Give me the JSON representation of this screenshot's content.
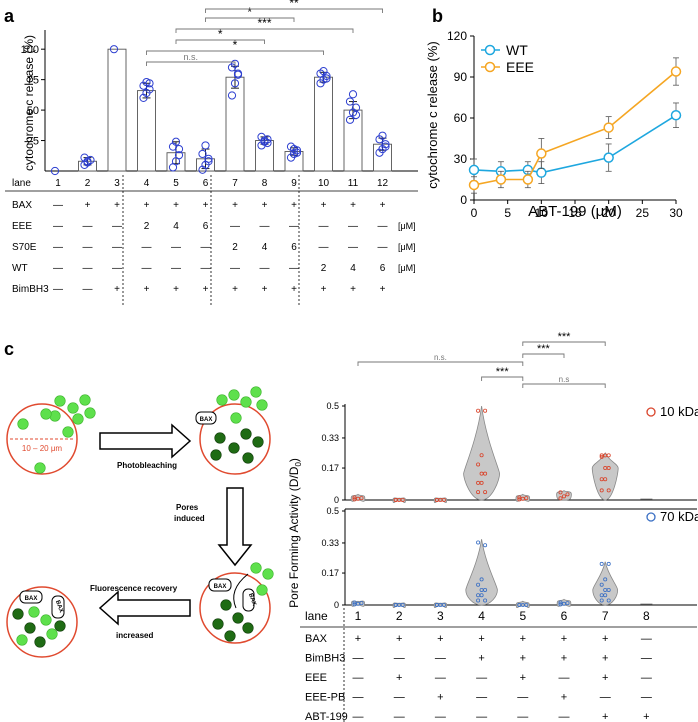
{
  "panels": {
    "a": "a",
    "b": "b",
    "c": "c"
  },
  "panel_a": {
    "ylabel": "cytochrome c release (%)",
    "ticks": [
      25,
      50,
      75,
      100
    ],
    "lane_label": "lane",
    "lanes": [
      "1",
      "2",
      "3",
      "4",
      "5",
      "6",
      "7",
      "8",
      "9",
      "10",
      "11",
      "12"
    ],
    "bars": [
      0,
      8,
      100,
      66,
      15,
      10,
      77,
      25,
      16,
      77,
      50,
      22
    ],
    "errors": [
      0,
      3,
      0,
      6,
      9,
      8,
      9,
      3,
      3,
      4,
      7,
      5
    ],
    "points": [
      [
        0
      ],
      [
        5,
        7,
        9,
        11,
        8
      ],
      [
        100
      ],
      [
        60,
        64,
        67,
        70,
        73,
        72
      ],
      [
        3,
        8,
        13,
        20,
        24,
        18
      ],
      [
        1,
        5,
        10,
        14,
        21,
        8
      ],
      [
        62,
        72,
        79,
        85,
        88,
        80
      ],
      [
        21,
        24,
        26,
        28,
        25,
        23
      ],
      [
        11,
        14,
        17,
        20,
        18,
        15
      ],
      [
        72,
        75,
        78,
        80,
        82,
        76
      ],
      [
        42,
        48,
        52,
        57,
        63,
        46
      ],
      [
        15,
        18,
        22,
        26,
        29,
        20
      ]
    ],
    "significance": [
      {
        "from": 4,
        "to": 7,
        "label": "n.s."
      },
      {
        "from": 4,
        "to": 10,
        "label": "*"
      },
      {
        "from": 5,
        "to": 8,
        "label": "*"
      },
      {
        "from": 5,
        "to": 11,
        "label": "***"
      },
      {
        "from": 6,
        "to": 9,
        "label": "*"
      },
      {
        "from": 6,
        "to": 12,
        "label": "**"
      }
    ],
    "table": [
      {
        "label": "BAX",
        "values": [
          "—",
          "+",
          "+",
          "+",
          "+",
          "+",
          "+",
          "+",
          "+",
          "+",
          "+",
          "+"
        ],
        "unit": ""
      },
      {
        "label": "EEE",
        "values": [
          "—",
          "—",
          "—",
          "2",
          "4",
          "6",
          "—",
          "—",
          "—",
          "—",
          "—",
          "—"
        ],
        "unit": "[μM]"
      },
      {
        "label": "S70E",
        "values": [
          "—",
          "—",
          "—",
          "—",
          "—",
          "—",
          "2",
          "4",
          "6",
          "—",
          "—",
          "—"
        ],
        "unit": "[μM]"
      },
      {
        "label": "WT",
        "values": [
          "—",
          "—",
          "—",
          "—",
          "—",
          "—",
          "—",
          "—",
          "—",
          "2",
          "4",
          "6"
        ],
        "unit": "[μM]"
      },
      {
        "label": "BimBH3",
        "values": [
          "—",
          "—",
          "+",
          "+",
          "+",
          "+",
          "+",
          "+",
          "+",
          "+",
          "+",
          "+"
        ],
        "unit": ""
      }
    ]
  },
  "chart_data": {
    "type": "line",
    "title": "",
    "xlabel": "ABT-199 (μM)",
    "ylabel": "cytochrome c release (%)",
    "xlim": [
      0,
      30
    ],
    "ylim": [
      0,
      120
    ],
    "xticks": [
      0,
      5,
      10,
      15,
      20,
      25,
      30
    ],
    "yticks": [
      0,
      30,
      60,
      90,
      120
    ],
    "legend_position": "top-left",
    "series": [
      {
        "name": "WT",
        "color": "#1ea7df",
        "x": [
          0,
          4,
          8,
          10,
          20,
          30
        ],
        "y": [
          22,
          21,
          22,
          20,
          31,
          62
        ],
        "err": [
          8,
          7,
          6,
          8,
          10,
          9
        ]
      },
      {
        "name": "EEE",
        "color": "#f5a623",
        "x": [
          0,
          4,
          8,
          10,
          20,
          30
        ],
        "y": [
          11,
          15,
          15,
          34,
          53,
          94
        ],
        "err": [
          6,
          6,
          6,
          11,
          8,
          10
        ]
      }
    ]
  },
  "panel_c": {
    "schematic": {
      "scale": "10 – 20 μm",
      "step1": "Photobleaching",
      "step2_line1": "Pores",
      "step2_line2": "induced",
      "step3_line1": "Fluorescence recovery",
      "step3_line2": "increased",
      "bax": "BAX"
    },
    "ylabel": "Pore  Forming Activity (D/D",
    "ylabel_sub": "0",
    "ylabel_end": ")",
    "yticks": [
      "0",
      "0.17",
      "0.33",
      "0.5"
    ],
    "legend_top": "10 kDa",
    "legend_bottom": "70 kDa",
    "lane_label": "lane",
    "lanes": [
      "1",
      "2",
      "3",
      "4",
      "5",
      "6",
      "7",
      "8"
    ],
    "violin_10kda": [
      {
        "median": 0.01,
        "spread": 0.03
      },
      {
        "median": 0.0,
        "spread": 0.01
      },
      {
        "median": 0.0,
        "spread": 0.01
      },
      {
        "median": 0.14,
        "spread": 0.5
      },
      {
        "median": 0.01,
        "spread": 0.03
      },
      {
        "median": 0.03,
        "spread": 0.05
      },
      {
        "median": 0.17,
        "spread": 0.25
      },
      {
        "median": 0.0,
        "spread": 0.0
      }
    ],
    "violin_70kda": [
      {
        "median": 0.01,
        "spread": 0.02
      },
      {
        "median": 0.0,
        "spread": 0.01
      },
      {
        "median": 0.0,
        "spread": 0.01
      },
      {
        "median": 0.08,
        "spread": 0.35
      },
      {
        "median": 0.0,
        "spread": 0.02
      },
      {
        "median": 0.01,
        "spread": 0.03
      },
      {
        "median": 0.08,
        "spread": 0.23
      },
      {
        "median": 0.0,
        "spread": 0.0
      }
    ],
    "significance": [
      {
        "from": 1,
        "to": 5,
        "label": "n.s."
      },
      {
        "from": 4,
        "to": 5,
        "label": "***"
      },
      {
        "from": 5,
        "to": 6,
        "label": "***"
      },
      {
        "from": 5,
        "to": 7,
        "label": "n.s"
      },
      {
        "from": 5,
        "to": 7,
        "label": "***"
      }
    ],
    "table": [
      {
        "label": "BAX",
        "values": [
          "+",
          "+",
          "+",
          "+",
          "+",
          "+",
          "+",
          "—"
        ]
      },
      {
        "label": "BimBH3",
        "values": [
          "—",
          "—",
          "—",
          "+",
          "+",
          "+",
          "+",
          "—"
        ]
      },
      {
        "label": "EEE",
        "values": [
          "—",
          "+",
          "—",
          "—",
          "+",
          "—",
          "+",
          "—"
        ]
      },
      {
        "label": "EEE-PB",
        "values": [
          "—",
          "—",
          "+",
          "—",
          "—",
          "+",
          "—",
          "—"
        ]
      },
      {
        "label": "ABT-199",
        "values": [
          "—",
          "—",
          "—",
          "—",
          "—",
          "—",
          "+",
          "+"
        ]
      }
    ]
  }
}
